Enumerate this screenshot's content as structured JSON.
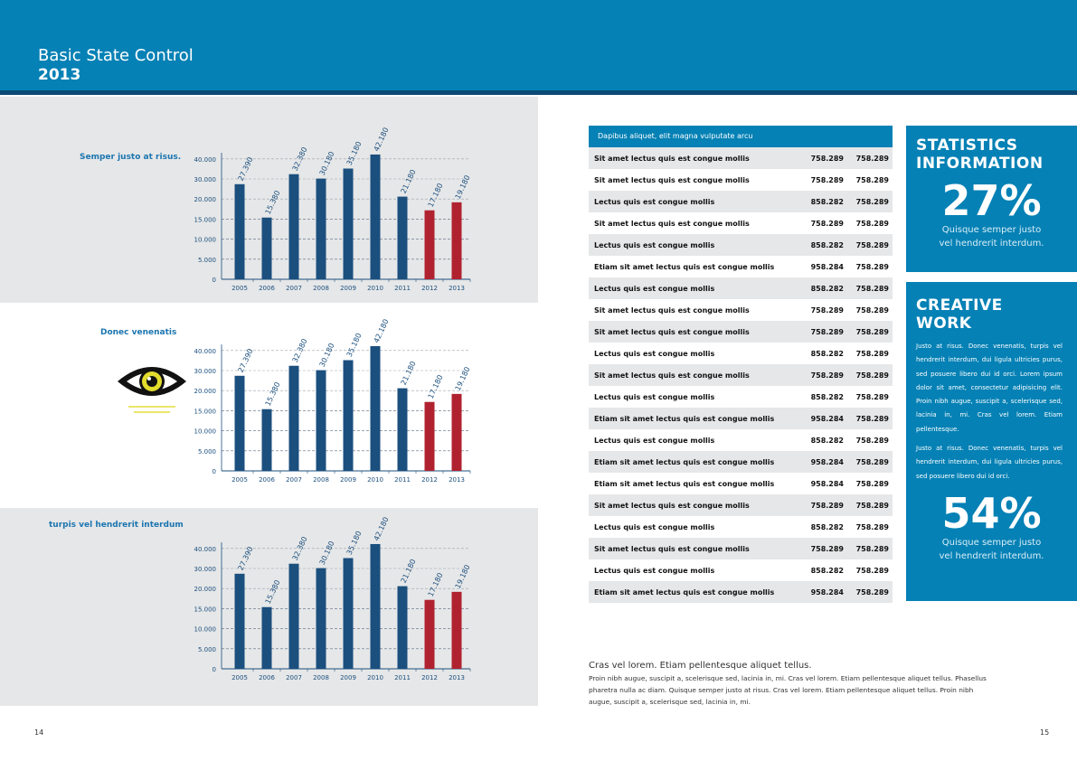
{
  "header": {
    "title": "Basic State Control",
    "year": "2013"
  },
  "colors": {
    "brand": "#0581b5",
    "bar": "#1b4f7e",
    "highlight": "#b0222f"
  },
  "chart_data": [
    {
      "type": "bar",
      "title": "Semper justo at risus.",
      "categories": [
        "2005",
        "2006",
        "2007",
        "2008",
        "2009",
        "2010",
        "2011",
        "2012",
        "2013"
      ],
      "values": [
        27390,
        15380,
        32380,
        30180,
        35180,
        42180,
        21180,
        17180,
        19180
      ],
      "value_labels": [
        "27.390",
        "15.380",
        "32.380",
        "30.180",
        "35.180",
        "42.180",
        "21.180",
        "17.180",
        "19.180"
      ],
      "highlighted": [
        "2012",
        "2013"
      ],
      "yticks": [
        "0",
        "5.000",
        "10.000",
        "15.000",
        "20.000",
        "30.000",
        "40.000"
      ],
      "ytick_values": [
        0,
        5000,
        10000,
        15000,
        20000,
        30000,
        40000
      ],
      "grid": true
    },
    {
      "type": "bar",
      "title": "Donec venenatis",
      "categories": [
        "2005",
        "2006",
        "2007",
        "2008",
        "2009",
        "2010",
        "2011",
        "2012",
        "2013"
      ],
      "values": [
        27390,
        15380,
        32380,
        30180,
        35180,
        42180,
        21180,
        17180,
        19180
      ],
      "value_labels": [
        "27.390",
        "15.380",
        "32.380",
        "30.180",
        "35.180",
        "42.180",
        "21.180",
        "17.180",
        "19.180"
      ],
      "highlighted": [
        "2012",
        "2013"
      ],
      "yticks": [
        "0",
        "5.000",
        "10.000",
        "15.000",
        "20.000",
        "30.000",
        "40.000"
      ],
      "ytick_values": [
        0,
        5000,
        10000,
        15000,
        20000,
        30000,
        40000
      ],
      "grid": true
    },
    {
      "type": "bar",
      "title": "turpis vel hendrerit interdum",
      "categories": [
        "2005",
        "2006",
        "2007",
        "2008",
        "2009",
        "2010",
        "2011",
        "2012",
        "2013"
      ],
      "values": [
        27390,
        15380,
        32380,
        30180,
        35180,
        42180,
        21180,
        17180,
        19180
      ],
      "value_labels": [
        "27.390",
        "15.380",
        "32.380",
        "30.180",
        "35.180",
        "42.180",
        "21.180",
        "17.180",
        "19.180"
      ],
      "highlighted": [
        "2012",
        "2013"
      ],
      "yticks": [
        "0",
        "5.000",
        "10.000",
        "15.000",
        "20.000",
        "30.000",
        "40.000"
      ],
      "ytick_values": [
        0,
        5000,
        10000,
        15000,
        20000,
        30000,
        40000
      ],
      "grid": true
    }
  ],
  "table": {
    "header": "Dapibus aliquet, elit magna vulputate arcu",
    "rows": [
      [
        "Sit amet lectus quis est congue mollis",
        "758.289",
        "758.289"
      ],
      [
        "Sit amet lectus quis est congue mollis",
        "758.289",
        "758.289"
      ],
      [
        "Lectus quis est congue mollis",
        "858.282",
        "758.289"
      ],
      [
        "Sit amet lectus quis est congue mollis",
        "758.289",
        "758.289"
      ],
      [
        "Lectus quis est congue mollis",
        "858.282",
        "758.289"
      ],
      [
        "Etiam sit amet lectus quis est congue mollis",
        "958.284",
        "758.289"
      ],
      [
        "Lectus quis est congue mollis",
        "858.282",
        "758.289"
      ],
      [
        "Sit amet lectus quis est congue mollis",
        "758.289",
        "758.289"
      ],
      [
        "Sit amet lectus quis est congue mollis",
        "758.289",
        "758.289"
      ],
      [
        "Lectus quis est congue mollis",
        "858.282",
        "758.289"
      ],
      [
        "Sit amet lectus quis est congue mollis",
        "758.289",
        "758.289"
      ],
      [
        "Lectus quis est congue mollis",
        "858.282",
        "758.289"
      ],
      [
        "Etiam sit amet lectus quis est congue mollis",
        "958.284",
        "758.289"
      ],
      [
        "Lectus quis est congue mollis",
        "858.282",
        "758.289"
      ],
      [
        "Etiam sit amet lectus quis est congue mollis",
        "958.284",
        "758.289"
      ],
      [
        "Etiam sit amet lectus quis est congue mollis",
        "958.284",
        "758.289"
      ],
      [
        "Sit amet lectus quis est congue mollis",
        "758.289",
        "758.289"
      ],
      [
        "Lectus quis est congue mollis",
        "858.282",
        "758.289"
      ],
      [
        "Sit amet lectus quis est congue mollis",
        "758.289",
        "758.289"
      ],
      [
        "Lectus quis est congue mollis",
        "858.282",
        "758.289"
      ],
      [
        "Etiam sit amet lectus quis est congue mollis",
        "958.284",
        "758.289"
      ]
    ]
  },
  "stats": {
    "title1": "STATISTICS",
    "title2": "INFORMATION",
    "percent": "27%",
    "caption1": "Quisque semper justo",
    "caption2": "vel hendrerit interdum."
  },
  "creative": {
    "title1": "CREATIVE",
    "title2": "WORK",
    "para1": "Justo at risus. Donec venenatis, turpis vel hendrerit interdum, dui ligula ultricies purus, sed posuere libero dui id orci. Lorem ipsum dolor sit amet, consectetur adipisicing elit. Proin nibh augue, suscipit a, scelerisque sed, lacinia in, mi. Cras vel lorem. Etiam pellentesque.",
    "para2": "Justo at risus. Donec venenatis, turpis vel hendrerit interdum, dui ligula ultricies purus, sed posuere libero dui id orci.",
    "percent": "54%",
    "caption1": "Quisque semper justo",
    "caption2": "vel hendrerit interdum."
  },
  "footer": {
    "heading": "Cras vel lorem. Etiam pellentesque aliquet tellus.",
    "body": "Proin nibh augue, suscipit a, scelerisque sed, lacinia in, mi. Cras vel lorem. Etiam pellentesque aliquet tellus. Phasellus pharetra nulla ac diam. Quisque semper justo at risus.  Cras vel lorem. Etiam pellentesque aliquet tellus. Proin nibh augue, suscipit a, scelerisque sed, lacinia in, mi."
  },
  "pages": {
    "left": "14",
    "right": "15"
  }
}
